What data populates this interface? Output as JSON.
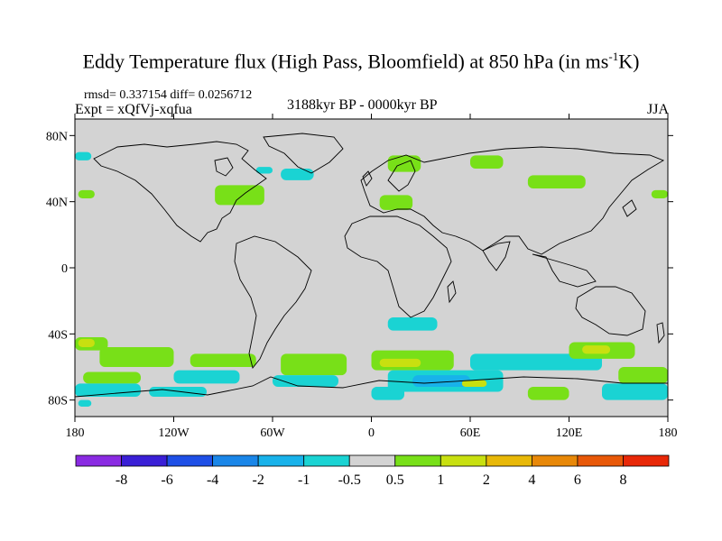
{
  "chart_data": {
    "type": "heatmap",
    "title_main": "Eddy Temperature flux (High Pass, Bloomfield) at 850 hPa (in ms",
    "title_sup": "-1",
    "title_tail": "K)",
    "stats": "rmsd= 0.337154 diff= 0.0256712",
    "expt": "Expt = xQfVj-xqfua",
    "period": "3188kyr BP - 0000kyr BP",
    "season": "JJA",
    "x_range": [
      -180,
      180
    ],
    "y_range": [
      -90,
      90
    ],
    "x_ticks": [
      {
        "value": -180,
        "label": "180"
      },
      {
        "value": -120,
        "label": "120W"
      },
      {
        "value": -60,
        "label": "60W"
      },
      {
        "value": 0,
        "label": "0"
      },
      {
        "value": 60,
        "label": "60E"
      },
      {
        "value": 120,
        "label": "120E"
      },
      {
        "value": 180,
        "label": "180"
      }
    ],
    "y_ticks": [
      {
        "value": 80,
        "label": "80N"
      },
      {
        "value": 40,
        "label": "40N"
      },
      {
        "value": 0,
        "label": "0"
      },
      {
        "value": -40,
        "label": "40S"
      },
      {
        "value": -80,
        "label": "80S"
      }
    ],
    "colorbar": {
      "colors": [
        "#8a2be2",
        "#3a1fd6",
        "#1e4fe6",
        "#1a86e8",
        "#18b2ea",
        "#1ad3d3",
        "#d3d3d3",
        "#78e018",
        "#c8e010",
        "#e8b808",
        "#e88808",
        "#e85808",
        "#e82808"
      ],
      "labels": [
        "-8",
        "-6",
        "-4",
        "-2",
        "-1",
        "-0.5",
        "0.5",
        "1",
        "2",
        "4",
        "6",
        "8"
      ]
    },
    "background_color": "#d3d3d3",
    "regions": [
      {
        "level": 0.75,
        "color": "#78e018",
        "lon": [
          -180,
          -160
        ],
        "lat": [
          -50,
          -42
        ]
      },
      {
        "level": 0.75,
        "color": "#78e018",
        "lon": [
          -165,
          -120
        ],
        "lat": [
          -60,
          -48
        ]
      },
      {
        "level": 0.75,
        "color": "#78e018",
        "lon": [
          -175,
          -140
        ],
        "lat": [
          -70,
          -63
        ]
      },
      {
        "level": 1.5,
        "color": "#c8e010",
        "lon": [
          -178,
          -168
        ],
        "lat": [
          -48,
          -43
        ]
      },
      {
        "level": -0.75,
        "color": "#1ad3d3",
        "lon": [
          -180,
          -140
        ],
        "lat": [
          -78,
          -70
        ]
      },
      {
        "level": -0.75,
        "color": "#1ad3d3",
        "lon": [
          -178,
          -170
        ],
        "lat": [
          -84,
          -80
        ]
      },
      {
        "level": -0.75,
        "color": "#1ad3d3",
        "lon": [
          -135,
          -100
        ],
        "lat": [
          -78,
          -72
        ]
      },
      {
        "level": -0.75,
        "color": "#1ad3d3",
        "lon": [
          -120,
          -80
        ],
        "lat": [
          -70,
          -62
        ]
      },
      {
        "level": 0.75,
        "color": "#78e018",
        "lon": [
          -110,
          -70
        ],
        "lat": [
          -60,
          -52
        ]
      },
      {
        "level": 0.75,
        "color": "#78e018",
        "lon": [
          -55,
          -15
        ],
        "lat": [
          -65,
          -52
        ]
      },
      {
        "level": -0.75,
        "color": "#1ad3d3",
        "lon": [
          -60,
          -20
        ],
        "lat": [
          -72,
          -65
        ]
      },
      {
        "level": -0.75,
        "color": "#1ad3d3",
        "lon": [
          0,
          20
        ],
        "lat": [
          -80,
          -72
        ]
      },
      {
        "level": 0.75,
        "color": "#78e018",
        "lon": [
          0,
          50
        ],
        "lat": [
          -62,
          -50
        ]
      },
      {
        "level": 1.5,
        "color": "#c8e010",
        "lon": [
          5,
          30
        ],
        "lat": [
          -60,
          -55
        ]
      },
      {
        "level": -0.75,
        "color": "#1ad3d3",
        "lon": [
          10,
          80
        ],
        "lat": [
          -75,
          -62
        ]
      },
      {
        "level": -1.5,
        "color": "#18b2ea",
        "lon": [
          25,
          60
        ],
        "lat": [
          -72,
          -65
        ]
      },
      {
        "level": -0.75,
        "color": "#1ad3d3",
        "lon": [
          60,
          140
        ],
        "lat": [
          -62,
          -52
        ]
      },
      {
        "level": 1.5,
        "color": "#c8e010",
        "lon": [
          55,
          70
        ],
        "lat": [
          -72,
          -68
        ]
      },
      {
        "level": 0.75,
        "color": "#78e018",
        "lon": [
          95,
          120
        ],
        "lat": [
          -80,
          -72
        ]
      },
      {
        "level": 0.75,
        "color": "#78e018",
        "lon": [
          120,
          160
        ],
        "lat": [
          -55,
          -45
        ]
      },
      {
        "level": 1.5,
        "color": "#c8e010",
        "lon": [
          128,
          145
        ],
        "lat": [
          -52,
          -47
        ]
      },
      {
        "level": 0.75,
        "color": "#78e018",
        "lon": [
          150,
          180
        ],
        "lat": [
          -70,
          -60
        ]
      },
      {
        "level": -0.75,
        "color": "#1ad3d3",
        "lon": [
          140,
          180
        ],
        "lat": [
          -80,
          -70
        ]
      },
      {
        "level": -0.75,
        "color": "#1ad3d3",
        "lon": [
          -55,
          -35
        ],
        "lat": [
          53,
          60
        ]
      },
      {
        "level": 0.75,
        "color": "#78e018",
        "lon": [
          -95,
          -65
        ],
        "lat": [
          38,
          50
        ]
      },
      {
        "level": -0.75,
        "color": "#1ad3d3",
        "lon": [
          -70,
          -60
        ],
        "lat": [
          57,
          61
        ]
      },
      {
        "level": 0.75,
        "color": "#78e018",
        "lon": [
          5,
          25
        ],
        "lat": [
          35,
          44
        ]
      },
      {
        "level": 0.75,
        "color": "#78e018",
        "lon": [
          10,
          30
        ],
        "lat": [
          58,
          68
        ]
      },
      {
        "level": 0.75,
        "color": "#78e018",
        "lon": [
          60,
          80
        ],
        "lat": [
          60,
          68
        ]
      },
      {
        "level": 0.75,
        "color": "#78e018",
        "lon": [
          95,
          130
        ],
        "lat": [
          48,
          56
        ]
      },
      {
        "level": 0.75,
        "color": "#78e018",
        "lon": [
          170,
          180
        ],
        "lat": [
          42,
          47
        ]
      },
      {
        "level": 0.75,
        "color": "#78e018",
        "lon": [
          -178,
          -168
        ],
        "lat": [
          42,
          47
        ]
      },
      {
        "level": -0.75,
        "color": "#1ad3d3",
        "lon": [
          -180,
          -170
        ],
        "lat": [
          65,
          70
        ]
      },
      {
        "level": -0.75,
        "color": "#1ad3d3",
        "lon": [
          10,
          40
        ],
        "lat": [
          -38,
          -30
        ]
      }
    ]
  }
}
